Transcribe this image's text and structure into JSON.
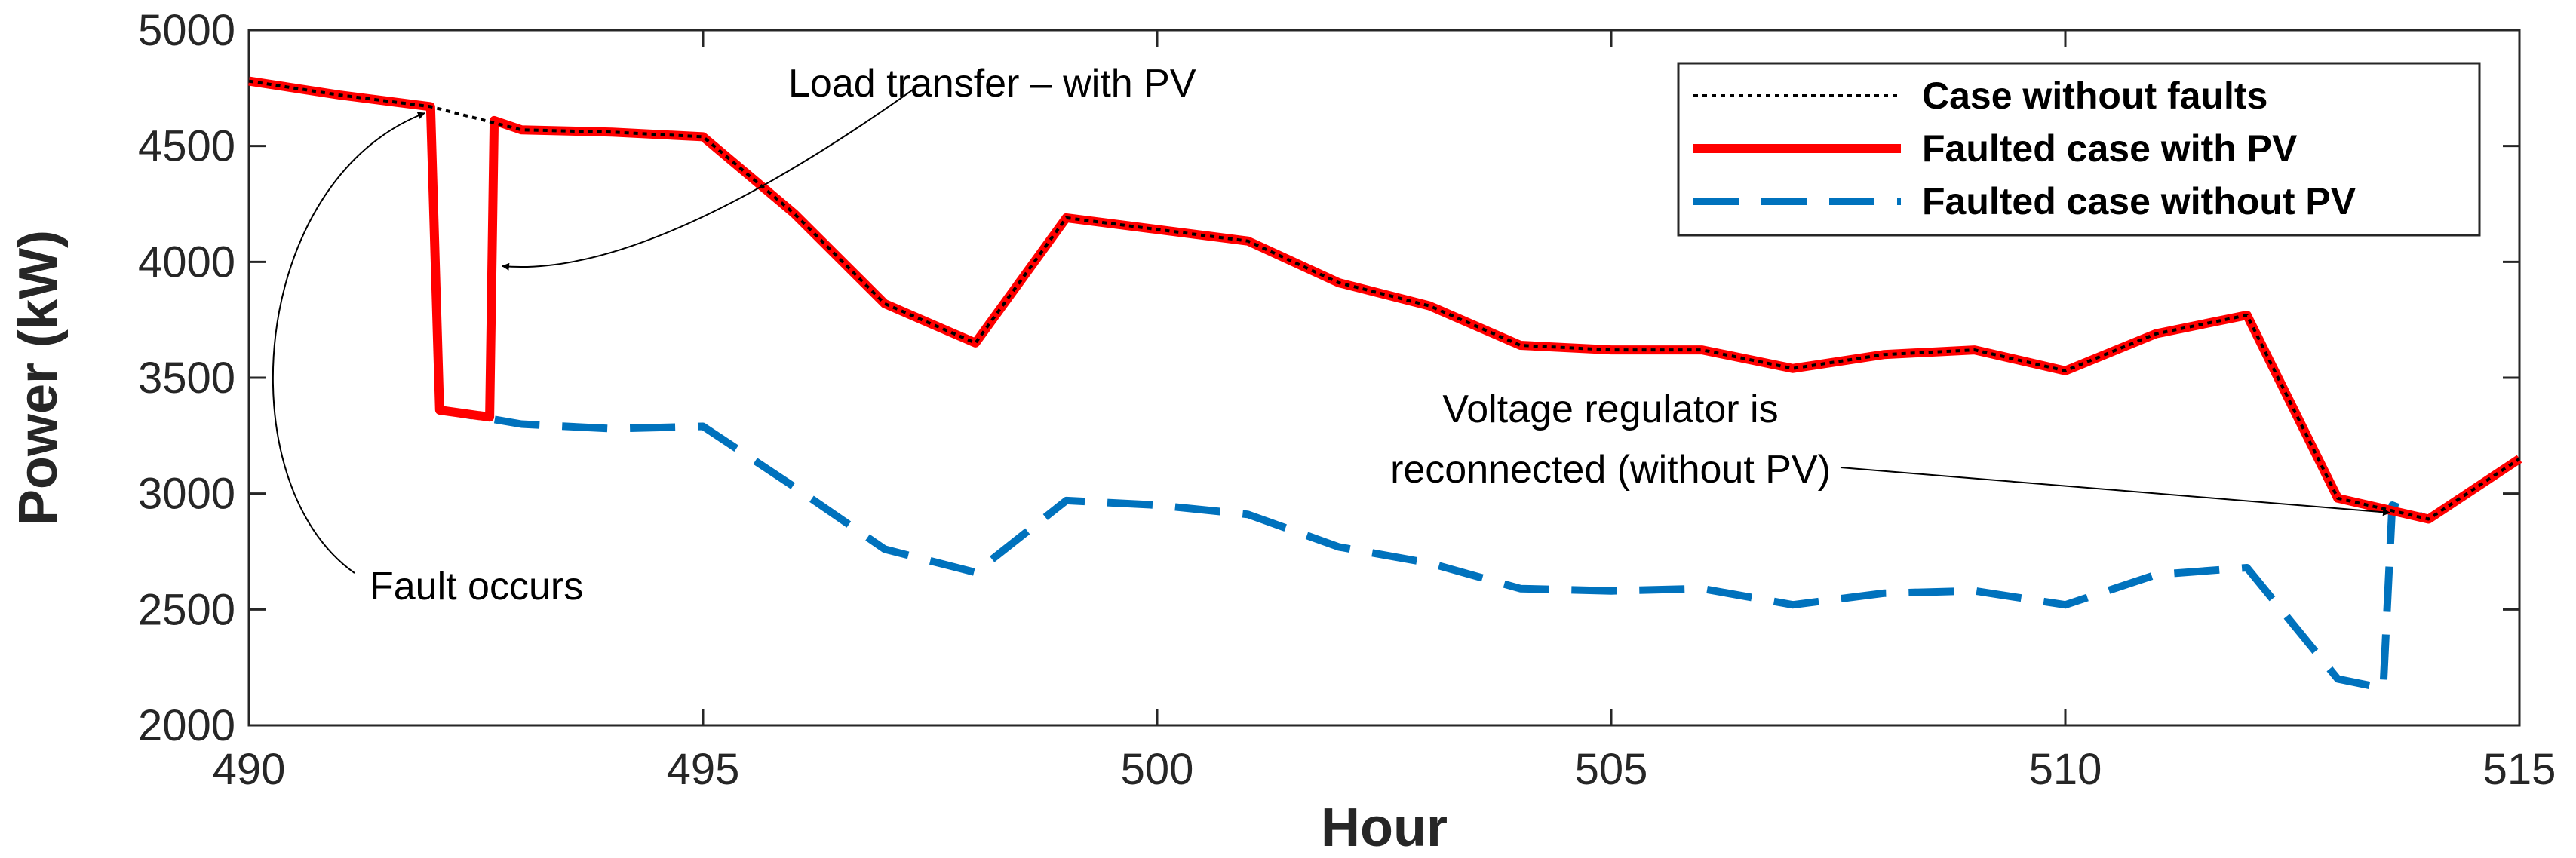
{
  "chart_data": {
    "type": "line",
    "title": "",
    "xlabel": "Hour",
    "ylabel": "Power (kW)",
    "xlim": [
      490,
      515
    ],
    "ylim": [
      2000,
      5000
    ],
    "xticks": [
      490,
      495,
      500,
      505,
      510,
      515
    ],
    "yticks": [
      2000,
      2500,
      3000,
      3500,
      4000,
      4500,
      5000
    ],
    "xtick_labels": [
      "490",
      "495",
      "500",
      "505",
      "510",
      "515"
    ],
    "ytick_labels": [
      "2000",
      "2500",
      "3000",
      "3500",
      "4000",
      "4500",
      "5000"
    ],
    "grid": false,
    "legend_position": "top-right",
    "series": [
      {
        "name": "Case without faults",
        "color": "#000000",
        "style": "dotted",
        "x": [
          490,
          491,
          492,
          493,
          494,
          495,
          496,
          497,
          498,
          499,
          500,
          501,
          502,
          503,
          504,
          505,
          506,
          507,
          508,
          509,
          510,
          511,
          512,
          513,
          514,
          515
        ],
        "y": [
          4780,
          4720,
          4670,
          4570,
          4560,
          4540,
          4210,
          3820,
          3650,
          4190,
          4140,
          4090,
          3910,
          3810,
          3640,
          3620,
          3620,
          3540,
          3600,
          3620,
          3530,
          3690,
          3770,
          2980,
          2890,
          3150
        ]
      },
      {
        "name": "Faulted case with PV",
        "color": "#ff0000",
        "style": "solid",
        "x": [
          490,
          491,
          492,
          492.1,
          492.65,
          492.7,
          493,
          494,
          495,
          496,
          497,
          498,
          499,
          500,
          501,
          502,
          503,
          504,
          505,
          506,
          507,
          508,
          509,
          510,
          511,
          512,
          513,
          514,
          515
        ],
        "y": [
          4780,
          4720,
          4670,
          3360,
          3330,
          4610,
          4570,
          4560,
          4540,
          4210,
          3820,
          3650,
          4190,
          4140,
          4090,
          3910,
          3810,
          3640,
          3620,
          3620,
          3540,
          3600,
          3620,
          3530,
          3690,
          3770,
          2980,
          2890,
          3150
        ]
      },
      {
        "name": "Faulted case without PV",
        "color": "#0072bd",
        "style": "dashed",
        "x": [
          490,
          491,
          492,
          492.1,
          493,
          494,
          495,
          496,
          497,
          498,
          499,
          500,
          501,
          502,
          503,
          504,
          505,
          506,
          507,
          508,
          509,
          510,
          511,
          512,
          513,
          513.5,
          513.6,
          514,
          515
        ],
        "y": [
          4780,
          4720,
          4670,
          3360,
          3300,
          3280,
          3290,
          3030,
          2760,
          2660,
          2970,
          2950,
          2910,
          2770,
          2700,
          2590,
          2580,
          2590,
          2520,
          2570,
          2580,
          2520,
          2650,
          2680,
          2200,
          2160,
          2950,
          2890,
          3150
        ]
      }
    ],
    "annotations": [
      {
        "text": "Load transfer – with PV",
        "points_to": [
          492.7,
          4000
        ]
      },
      {
        "text": "Fault occurs",
        "points_to": [
          492,
          4670
        ]
      },
      {
        "text": "Voltage regulator is",
        "text2": "reconnected (without PV)",
        "points_to": [
          513.6,
          2930
        ]
      }
    ]
  }
}
